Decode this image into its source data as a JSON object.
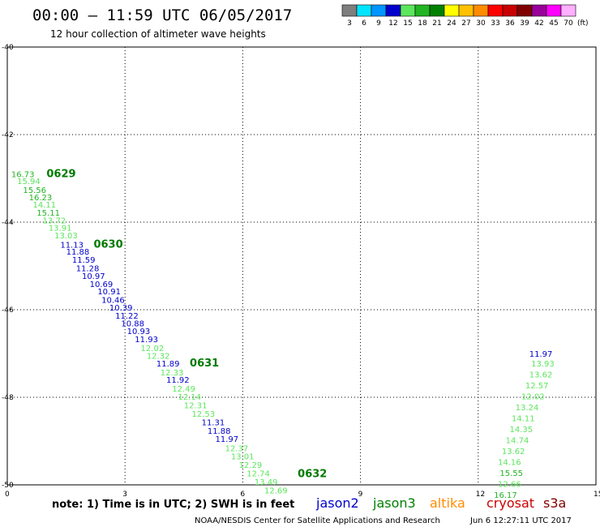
{
  "header": {
    "title": "00:00 – 11:59 UTC 06/05/2017",
    "subtitle": "12 hour collection of altimeter wave heights"
  },
  "colorbar": {
    "unit": "(ft)",
    "bins": [
      {
        "label": "3",
        "color": "#7f7f7f"
      },
      {
        "label": "6",
        "color": "#00e5ff"
      },
      {
        "label": "9",
        "color": "#0095ff"
      },
      {
        "label": "12",
        "color": "#0000cc"
      },
      {
        "label": "15",
        "color": "#5ce65c"
      },
      {
        "label": "18",
        "color": "#22b422"
      },
      {
        "label": "21",
        "color": "#008000"
      },
      {
        "label": "24",
        "color": "#ffff00"
      },
      {
        "label": "27",
        "color": "#ffc000"
      },
      {
        "label": "30",
        "color": "#ff8c00"
      },
      {
        "label": "33",
        "color": "#ff0000"
      },
      {
        "label": "36",
        "color": "#c80000"
      },
      {
        "label": "39",
        "color": "#800000"
      },
      {
        "label": "42",
        "color": "#990099"
      },
      {
        "label": "45",
        "color": "#ff00ff"
      },
      {
        "label": "70",
        "color": "#ffb0ff"
      }
    ]
  },
  "footer": {
    "note": "note: 1) Time is in UTC; 2) SWH is in feet",
    "satellites": [
      {
        "name": "jason2",
        "color": "#0000cc"
      },
      {
        "name": "jason3",
        "color": "#008000"
      },
      {
        "name": "altika",
        "color": "#ff8c00"
      },
      {
        "name": "cryosat",
        "color": "#cc0000"
      },
      {
        "name": "s3a",
        "color": "#800000"
      }
    ],
    "credit": "NOAA/NESDIS Center for Satellite Applications and Research",
    "timestamp": "Jun  6 12:27:11 UTC 2017"
  },
  "chart_data": {
    "type": "scatter",
    "xlim": [
      0,
      15
    ],
    "ylim": [
      -50,
      -40
    ],
    "xticks": [
      "0",
      "3",
      "6",
      "9",
      "12",
      "15"
    ],
    "yticks": [
      "-40",
      "-42",
      "-44",
      "-46",
      "-48",
      "-50"
    ],
    "grid": true,
    "passes": [
      {
        "label": "0629",
        "x": 1.0,
        "y": -42.97
      },
      {
        "label": "0630",
        "x": 2.2,
        "y": -44.58
      },
      {
        "label": "0631",
        "x": 4.65,
        "y": -47.3
      },
      {
        "label": "0632",
        "x": 7.4,
        "y": -49.82
      }
    ],
    "points": [
      {
        "x": 0.1,
        "y": -42.97,
        "v": "16.73",
        "c": "#22b422"
      },
      {
        "x": 0.25,
        "y": -43.13,
        "v": "15.94",
        "c": "#5ce65c"
      },
      {
        "x": 0.4,
        "y": -43.33,
        "v": "15.56",
        "c": "#22b422"
      },
      {
        "x": 0.55,
        "y": -43.5,
        "v": "16.23",
        "c": "#22b422"
      },
      {
        "x": 0.65,
        "y": -43.67,
        "v": "14.11",
        "c": "#5ce65c"
      },
      {
        "x": 0.75,
        "y": -43.85,
        "v": "15.11",
        "c": "#22b422"
      },
      {
        "x": 0.9,
        "y": -44.03,
        "v": "13.72",
        "c": "#5ce65c"
      },
      {
        "x": 1.05,
        "y": -44.19,
        "v": "13.91",
        "c": "#5ce65c"
      },
      {
        "x": 1.2,
        "y": -44.37,
        "v": "13.03",
        "c": "#5ce65c"
      },
      {
        "x": 1.35,
        "y": -44.58,
        "v": "11.13",
        "c": "#0000cc"
      },
      {
        "x": 1.5,
        "y": -44.74,
        "v": "11.88",
        "c": "#0000cc"
      },
      {
        "x": 1.65,
        "y": -44.93,
        "v": "11.59",
        "c": "#0000cc"
      },
      {
        "x": 1.75,
        "y": -45.12,
        "v": "11.28",
        "c": "#0000cc"
      },
      {
        "x": 1.9,
        "y": -45.3,
        "v": "10.97",
        "c": "#0000cc"
      },
      {
        "x": 2.1,
        "y": -45.48,
        "v": "10.69",
        "c": "#0000cc"
      },
      {
        "x": 2.3,
        "y": -45.65,
        "v": "10.91",
        "c": "#0000cc"
      },
      {
        "x": 2.4,
        "y": -45.84,
        "v": "10.46",
        "c": "#0000cc"
      },
      {
        "x": 2.6,
        "y": -46.02,
        "v": "10.39",
        "c": "#0000cc"
      },
      {
        "x": 2.75,
        "y": -46.2,
        "v": "11.22",
        "c": "#0000cc"
      },
      {
        "x": 2.9,
        "y": -46.38,
        "v": "10.88",
        "c": "#0000cc"
      },
      {
        "x": 3.05,
        "y": -46.56,
        "v": "10.93",
        "c": "#0000cc"
      },
      {
        "x": 3.25,
        "y": -46.74,
        "v": "11.93",
        "c": "#0000cc"
      },
      {
        "x": 3.4,
        "y": -46.94,
        "v": "12.02",
        "c": "#5ce65c"
      },
      {
        "x": 3.55,
        "y": -47.12,
        "v": "12.32",
        "c": "#5ce65c"
      },
      {
        "x": 3.8,
        "y": -47.3,
        "v": "11.89",
        "c": "#0000cc"
      },
      {
        "x": 3.9,
        "y": -47.5,
        "v": "12.33",
        "c": "#5ce65c"
      },
      {
        "x": 4.05,
        "y": -47.67,
        "v": "11.92",
        "c": "#0000cc"
      },
      {
        "x": 4.2,
        "y": -47.87,
        "v": "12.49",
        "c": "#5ce65c"
      },
      {
        "x": 4.35,
        "y": -48.06,
        "v": "12.14",
        "c": "#5ce65c"
      },
      {
        "x": 4.5,
        "y": -48.25,
        "v": "12.31",
        "c": "#5ce65c"
      },
      {
        "x": 4.7,
        "y": -48.44,
        "v": "12.53",
        "c": "#5ce65c"
      },
      {
        "x": 4.95,
        "y": -48.64,
        "v": "11.31",
        "c": "#0000cc"
      },
      {
        "x": 5.1,
        "y": -48.83,
        "v": "11.88",
        "c": "#0000cc"
      },
      {
        "x": 5.3,
        "y": -49.02,
        "v": "11.97",
        "c": "#0000cc"
      },
      {
        "x": 5.55,
        "y": -49.23,
        "v": "12.37",
        "c": "#5ce65c"
      },
      {
        "x": 5.7,
        "y": -49.42,
        "v": "13.01",
        "c": "#5ce65c"
      },
      {
        "x": 5.9,
        "y": -49.61,
        "v": "12.29",
        "c": "#5ce65c"
      },
      {
        "x": 6.1,
        "y": -49.81,
        "v": "12.74",
        "c": "#5ce65c"
      },
      {
        "x": 6.3,
        "y": -50.0,
        "v": "13.49",
        "c": "#5ce65c"
      },
      {
        "x": 6.55,
        "y": -50.19,
        "v": "12.69",
        "c": "#5ce65c"
      },
      {
        "x": 13.3,
        "y": -47.07,
        "v": "11.97",
        "c": "#0000cc"
      },
      {
        "x": 13.35,
        "y": -47.3,
        "v": "13.93",
        "c": "#5ce65c"
      },
      {
        "x": 13.3,
        "y": -47.55,
        "v": "13.62",
        "c": "#5ce65c"
      },
      {
        "x": 13.2,
        "y": -47.8,
        "v": "12.57",
        "c": "#5ce65c"
      },
      {
        "x": 13.1,
        "y": -48.05,
        "v": "12.02",
        "c": "#5ce65c"
      },
      {
        "x": 12.95,
        "y": -48.3,
        "v": "13.24",
        "c": "#5ce65c"
      },
      {
        "x": 12.85,
        "y": -48.55,
        "v": "14.11",
        "c": "#5ce65c"
      },
      {
        "x": 12.8,
        "y": -48.8,
        "v": "14.35",
        "c": "#5ce65c"
      },
      {
        "x": 12.7,
        "y": -49.05,
        "v": "14.74",
        "c": "#5ce65c"
      },
      {
        "x": 12.6,
        "y": -49.3,
        "v": "13.62",
        "c": "#5ce65c"
      },
      {
        "x": 12.5,
        "y": -49.55,
        "v": "14.16",
        "c": "#5ce65c"
      },
      {
        "x": 12.55,
        "y": -49.8,
        "v": "15.55",
        "c": "#22b422"
      },
      {
        "x": 12.5,
        "y": -50.05,
        "v": "12.66",
        "c": "#5ce65c"
      },
      {
        "x": 12.4,
        "y": -50.3,
        "v": "16.17",
        "c": "#22b422"
      }
    ]
  }
}
